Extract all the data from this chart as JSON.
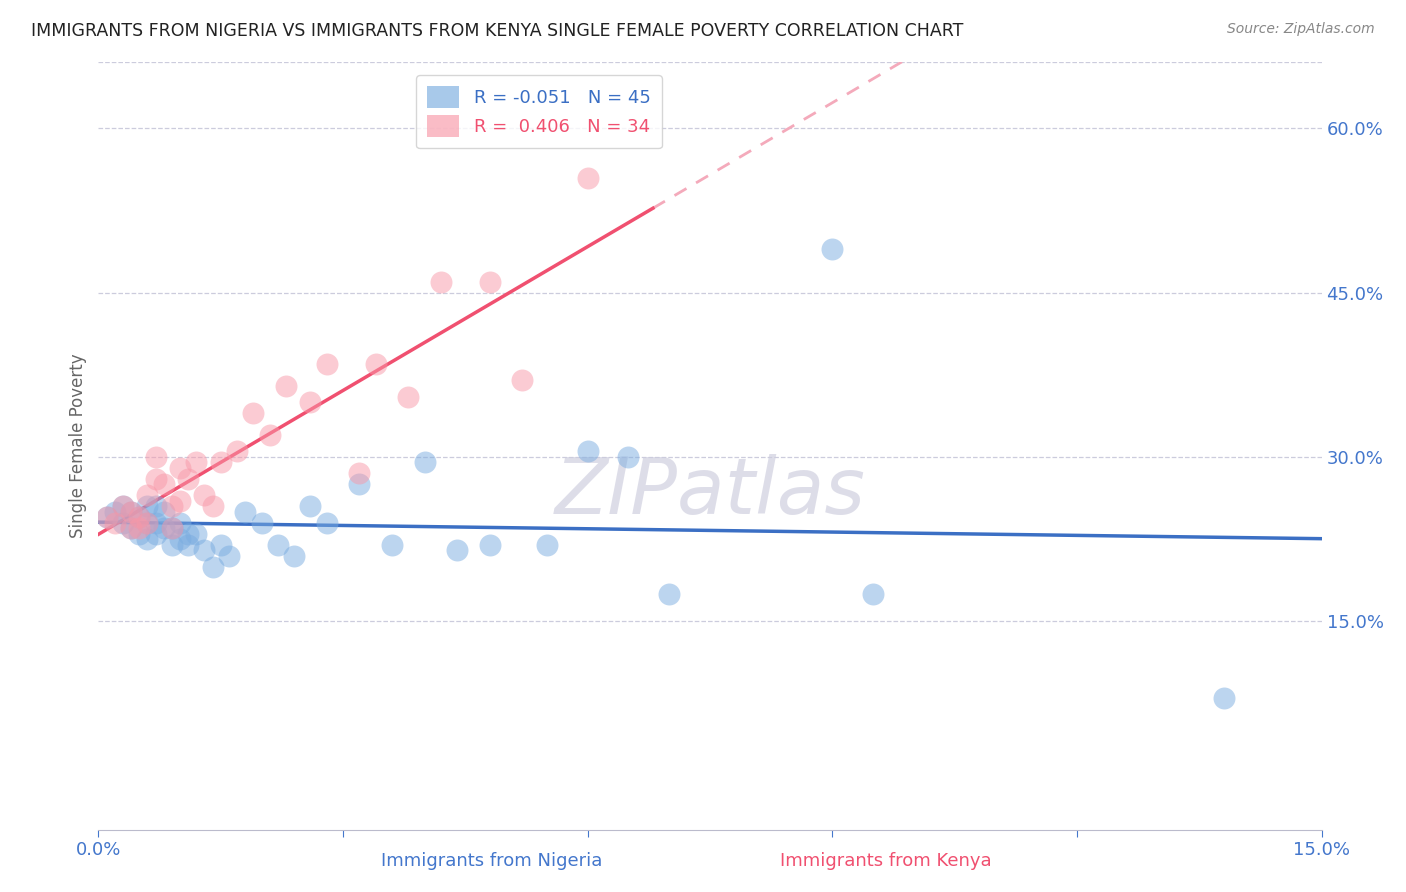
{
  "title": "IMMIGRANTS FROM NIGERIA VS IMMIGRANTS FROM KENYA SINGLE FEMALE POVERTY CORRELATION CHART",
  "source": "Source: ZipAtlas.com",
  "ylabel": "Single Female Poverty",
  "xlabel_nigeria": "Immigrants from Nigeria",
  "xlabel_kenya": "Immigrants from Kenya",
  "watermark": "ZIPatlas",
  "R_nigeria": -0.051,
  "N_nigeria": 45,
  "R_kenya": 0.406,
  "N_kenya": 34,
  "xlim": [
    0.0,
    0.15
  ],
  "ylim": [
    -0.04,
    0.66
  ],
  "yticks": [
    0.15,
    0.3,
    0.45,
    0.6
  ],
  "xticks_show": [
    0.0,
    0.15
  ],
  "xticks_minor": [
    0.03,
    0.06,
    0.09,
    0.12
  ],
  "color_nigeria": "#7AACE0",
  "color_kenya": "#F898A8",
  "trend_nigeria_color": "#3B6FC4",
  "trend_kenya_color": "#F05070",
  "dashed_line_color": "#F4AABB",
  "nigeria_x": [
    0.001,
    0.002,
    0.003,
    0.003,
    0.004,
    0.004,
    0.005,
    0.005,
    0.006,
    0.006,
    0.006,
    0.007,
    0.007,
    0.007,
    0.008,
    0.008,
    0.009,
    0.009,
    0.01,
    0.01,
    0.011,
    0.011,
    0.012,
    0.013,
    0.014,
    0.015,
    0.016,
    0.018,
    0.02,
    0.022,
    0.024,
    0.026,
    0.028,
    0.032,
    0.036,
    0.04,
    0.044,
    0.048,
    0.055,
    0.06,
    0.065,
    0.07,
    0.09,
    0.095,
    0.138
  ],
  "nigeria_y": [
    0.245,
    0.25,
    0.255,
    0.24,
    0.25,
    0.235,
    0.245,
    0.23,
    0.255,
    0.24,
    0.225,
    0.255,
    0.24,
    0.23,
    0.25,
    0.235,
    0.235,
    0.22,
    0.24,
    0.225,
    0.23,
    0.22,
    0.23,
    0.215,
    0.2,
    0.22,
    0.21,
    0.25,
    0.24,
    0.22,
    0.21,
    0.255,
    0.24,
    0.275,
    0.22,
    0.295,
    0.215,
    0.22,
    0.22,
    0.305,
    0.3,
    0.175,
    0.49,
    0.175,
    0.08
  ],
  "kenya_x": [
    0.001,
    0.002,
    0.003,
    0.004,
    0.004,
    0.005,
    0.005,
    0.006,
    0.006,
    0.007,
    0.007,
    0.008,
    0.009,
    0.009,
    0.01,
    0.01,
    0.011,
    0.012,
    0.013,
    0.014,
    0.015,
    0.017,
    0.019,
    0.021,
    0.023,
    0.026,
    0.028,
    0.032,
    0.034,
    0.038,
    0.042,
    0.048,
    0.052,
    0.06
  ],
  "kenya_y": [
    0.245,
    0.24,
    0.255,
    0.235,
    0.25,
    0.245,
    0.235,
    0.265,
    0.24,
    0.3,
    0.28,
    0.275,
    0.255,
    0.235,
    0.29,
    0.26,
    0.28,
    0.295,
    0.265,
    0.255,
    0.295,
    0.305,
    0.34,
    0.32,
    0.365,
    0.35,
    0.385,
    0.285,
    0.385,
    0.355,
    0.46,
    0.46,
    0.37,
    0.555
  ]
}
